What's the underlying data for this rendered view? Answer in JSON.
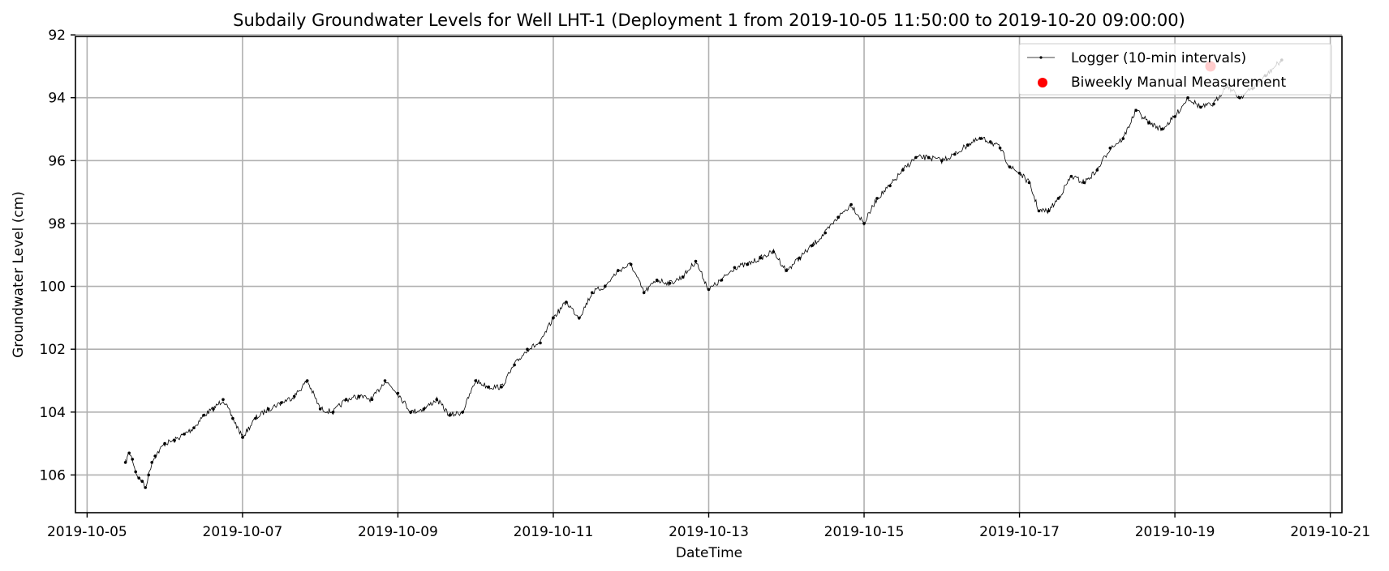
{
  "chart_data": {
    "type": "line",
    "title": "Subdaily Groundwater Levels for Well LHT-1 (Deployment 1 from 2019-10-05 11:50:00 to 2019-10-20 09:00:00)",
    "xlabel": "DateTime",
    "ylabel": "Groundwater Level (cm)",
    "x_ticks": [
      "2019-10-05",
      "2019-10-07",
      "2019-10-09",
      "2019-10-11",
      "2019-10-13",
      "2019-10-15",
      "2019-10-17",
      "2019-10-19",
      "2019-10-21"
    ],
    "y_ticks": [
      92,
      94,
      96,
      98,
      100,
      102,
      104,
      106
    ],
    "xlim": [
      "2019-10-04 20:24",
      "2019-10-21 03:36"
    ],
    "ylim": [
      107.2,
      92.05
    ],
    "y_inverted": true,
    "grid": true,
    "legend_position": "top-right",
    "series": [
      {
        "name": "Logger (10-min intervals)",
        "kind": "line",
        "color": "#000000",
        "interval": "10-min",
        "x": [
          "2019-10-05 11:50",
          "2019-10-05 13:00",
          "2019-10-05 14:00",
          "2019-10-05 15:00",
          "2019-10-05 16:00",
          "2019-10-05 17:00",
          "2019-10-05 18:00",
          "2019-10-05 19:00",
          "2019-10-05 20:00",
          "2019-10-05 21:00",
          "2019-10-06 00:00",
          "2019-10-06 03:00",
          "2019-10-06 06:00",
          "2019-10-06 09:00",
          "2019-10-06 12:00",
          "2019-10-06 15:00",
          "2019-10-06 18:00",
          "2019-10-06 21:00",
          "2019-10-07 00:00",
          "2019-10-07 04:00",
          "2019-10-07 08:00",
          "2019-10-07 12:00",
          "2019-10-07 16:00",
          "2019-10-07 20:00",
          "2019-10-08 00:00",
          "2019-10-08 04:00",
          "2019-10-08 08:00",
          "2019-10-08 12:00",
          "2019-10-08 16:00",
          "2019-10-08 20:00",
          "2019-10-09 00:00",
          "2019-10-09 04:00",
          "2019-10-09 08:00",
          "2019-10-09 12:00",
          "2019-10-09 16:00",
          "2019-10-09 20:00",
          "2019-10-10 00:00",
          "2019-10-10 04:00",
          "2019-10-10 08:00",
          "2019-10-10 12:00",
          "2019-10-10 16:00",
          "2019-10-10 20:00",
          "2019-10-11 00:00",
          "2019-10-11 04:00",
          "2019-10-11 08:00",
          "2019-10-11 12:00",
          "2019-10-11 16:00",
          "2019-10-11 20:00",
          "2019-10-12 00:00",
          "2019-10-12 04:00",
          "2019-10-12 08:00",
          "2019-10-12 12:00",
          "2019-10-12 16:00",
          "2019-10-12 20:00",
          "2019-10-13 00:00",
          "2019-10-13 04:00",
          "2019-10-13 08:00",
          "2019-10-13 12:00",
          "2019-10-13 16:00",
          "2019-10-13 20:00",
          "2019-10-14 00:00",
          "2019-10-14 04:00",
          "2019-10-14 08:00",
          "2019-10-14 12:00",
          "2019-10-14 16:00",
          "2019-10-14 20:00",
          "2019-10-15 00:00",
          "2019-10-15 04:00",
          "2019-10-15 08:00",
          "2019-10-15 12:00",
          "2019-10-15 16:00",
          "2019-10-15 20:00",
          "2019-10-16 00:00",
          "2019-10-16 04:00",
          "2019-10-16 08:00",
          "2019-10-16 12:00",
          "2019-10-16 15:00",
          "2019-10-16 18:00",
          "2019-10-16 21:00",
          "2019-10-17 00:00",
          "2019-10-17 03:00",
          "2019-10-17 06:00",
          "2019-10-17 09:00",
          "2019-10-17 12:00",
          "2019-10-17 16:00",
          "2019-10-17 20:00",
          "2019-10-18 00:00",
          "2019-10-18 04:00",
          "2019-10-18 08:00",
          "2019-10-18 12:00",
          "2019-10-18 16:00",
          "2019-10-18 20:00",
          "2019-10-19 00:00",
          "2019-10-19 04:00",
          "2019-10-19 08:00",
          "2019-10-19 12:00",
          "2019-10-19 16:00",
          "2019-10-19 20:00",
          "2019-10-20 00:00",
          "2019-10-20 04:00",
          "2019-10-20 09:00"
        ],
        "y": [
          105.6,
          105.3,
          105.5,
          105.9,
          106.1,
          106.2,
          106.4,
          106.0,
          105.6,
          105.4,
          105.0,
          104.9,
          104.7,
          104.5,
          104.1,
          103.9,
          103.6,
          104.2,
          104.8,
          104.2,
          103.9,
          103.7,
          103.5,
          103.0,
          103.9,
          104.0,
          103.6,
          103.5,
          103.6,
          103.0,
          103.4,
          104.0,
          103.9,
          103.6,
          104.1,
          104.0,
          103.0,
          103.2,
          103.2,
          102.5,
          102.0,
          101.8,
          101.0,
          100.5,
          101.0,
          100.2,
          100.0,
          99.5,
          99.3,
          100.2,
          99.8,
          99.9,
          99.7,
          99.2,
          100.1,
          99.8,
          99.4,
          99.3,
          99.1,
          98.9,
          99.5,
          99.1,
          98.7,
          98.3,
          97.8,
          97.4,
          98.0,
          97.2,
          96.8,
          96.3,
          95.9,
          95.9,
          96.0,
          95.8,
          95.5,
          95.3,
          95.4,
          95.6,
          96.2,
          96.4,
          96.7,
          97.6,
          97.6,
          97.2,
          96.5,
          96.7,
          96.3,
          95.6,
          95.3,
          94.4,
          94.8,
          95.0,
          94.6,
          94.0,
          94.3,
          94.2,
          93.6,
          94.0,
          93.7,
          93.3,
          92.8
        ]
      },
      {
        "name": "Biweekly Manual Measurement",
        "kind": "scatter",
        "color": "#ff0000",
        "x": [
          "2019-10-19 11:00"
        ],
        "y": [
          93.0
        ]
      }
    ]
  }
}
